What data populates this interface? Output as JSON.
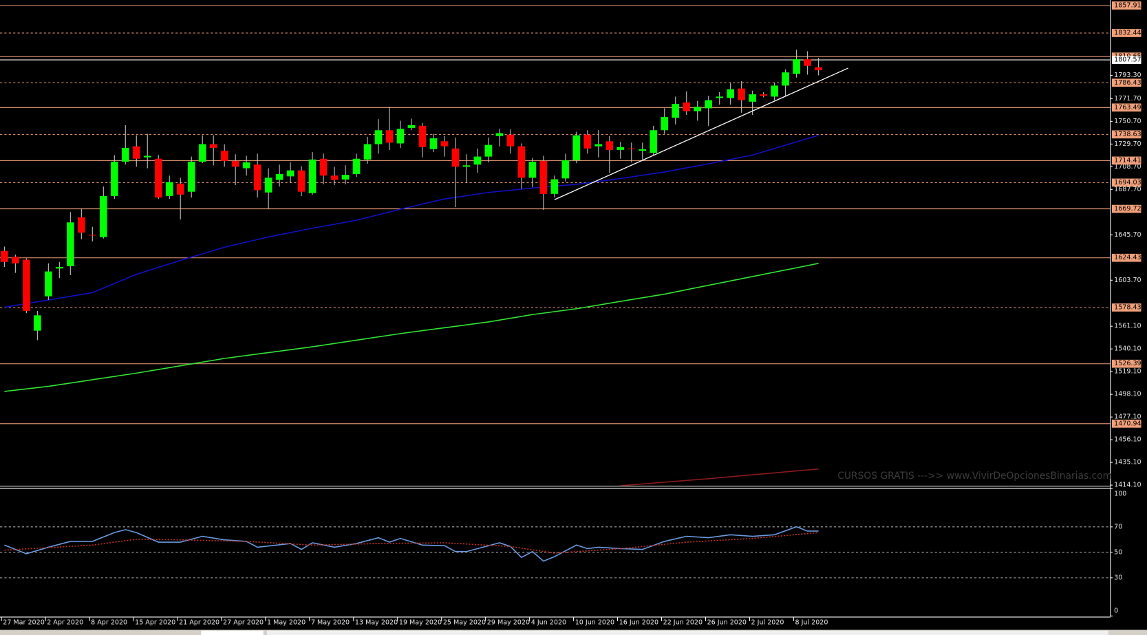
{
  "chart_data": {
    "type": "candlestick",
    "categories": [
      "27 Mar 2020",
      null,
      null,
      null,
      "2 Apr 2020",
      null,
      null,
      null,
      "8 Apr 2020",
      null,
      null,
      null,
      "15 Apr 2020",
      null,
      null,
      null,
      "21 Apr 2020",
      null,
      null,
      null,
      "27 Apr 2020",
      null,
      null,
      null,
      "1 May 2020",
      null,
      null,
      null,
      "7 May 2020",
      null,
      null,
      null,
      "13 May 2020",
      null,
      null,
      null,
      "19 May 2020",
      null,
      null,
      null,
      "25 May 2020",
      null,
      null,
      null,
      "29 May 2020",
      null,
      null,
      null,
      "4 Jun 2020",
      null,
      null,
      null,
      "10 Jun 2020",
      null,
      null,
      null,
      "16 Jun 2020",
      null,
      null,
      null,
      "22 Jun 2020",
      null,
      null,
      null,
      "26 Jun 2020",
      null,
      null,
      null,
      "2 Jul 2020",
      null,
      null,
      null,
      "8 Jul 2020",
      null,
      null
    ],
    "open": [
      1630.8,
      1625.4,
      1622.7,
      1557.0,
      1588.8,
      1614.5,
      1616.6,
      1661.9,
      1645.7,
      1643.6,
      1681.6,
      1713.4,
      1727.6,
      1717.4,
      1716.1,
      1681.6,
      1693.1,
      1685.6,
      1713.4,
      1729.6,
      1723.5,
      1714.1,
      1707.3,
      1710.7,
      1684.9,
      1696.5,
      1699.8,
      1705.3,
      1684.3,
      1716.1,
      1700.5,
      1696.9,
      1701.9,
      1715.4,
      1729.6,
      1742.5,
      1730.3,
      1744.5,
      1746.6,
      1725.0,
      1732.3,
      1725.6,
      1708.7,
      1710.7,
      1718.1,
      1737.1,
      1738.4,
      1727.6,
      1698.5,
      1714.1,
      1683.6,
      1697.9,
      1714.7,
      1738.4,
      1727.6,
      1732.3,
      1724.2,
      1725.6,
      1723.5,
      1721.5,
      1742.5,
      1754.0,
      1768.2,
      1760.1,
      1762.8,
      1772.3,
      1772.3,
      1781.1,
      1768.9,
      1775.7,
      1773.6,
      1783.8,
      1794.6,
      1808.2,
      1800.7
    ],
    "high": [
      1634.8,
      1627.4,
      1624.0,
      1575.3,
      1619.3,
      1620.6,
      1666.7,
      1670.1,
      1653.1,
      1690.4,
      1719.5,
      1747.2,
      1737.8,
      1739.1,
      1719.5,
      1700.5,
      1698.5,
      1718.1,
      1737.8,
      1737.8,
      1729.6,
      1720.2,
      1718.8,
      1720.8,
      1707.3,
      1710.7,
      1712.7,
      1709.3,
      1722.2,
      1720.8,
      1708.7,
      1710.0,
      1720.8,
      1736.4,
      1752.7,
      1764.2,
      1751.3,
      1753.3,
      1749.3,
      1739.1,
      1737.1,
      1735.7,
      1720.2,
      1725.6,
      1735.7,
      1743.8,
      1743.2,
      1730.3,
      1716.8,
      1718.8,
      1700.5,
      1720.8,
      1741.1,
      1742.5,
      1742.5,
      1737.1,
      1731.7,
      1731.0,
      1731.0,
      1746.6,
      1762.8,
      1773.6,
      1778.4,
      1769.6,
      1774.3,
      1777.7,
      1786.5,
      1787.9,
      1779.1,
      1777.7,
      1786.5,
      1798.7,
      1817.0,
      1815.6,
      1809.5
    ],
    "low": [
      1615.9,
      1610.5,
      1573.2,
      1548.2,
      1585.4,
      1605.7,
      1608.4,
      1641.6,
      1639.6,
      1642.3,
      1678.9,
      1710.7,
      1708.7,
      1707.3,
      1678.9,
      1678.9,
      1659.9,
      1680.2,
      1712.0,
      1710.0,
      1708.7,
      1691.7,
      1700.5,
      1680.2,
      1670.1,
      1690.4,
      1693.8,
      1681.6,
      1682.9,
      1692.4,
      1691.7,
      1692.4,
      1699.2,
      1711.4,
      1720.8,
      1724.2,
      1726.2,
      1742.5,
      1717.4,
      1722.2,
      1718.1,
      1671.4,
      1693.8,
      1703.2,
      1712.7,
      1727.6,
      1720.8,
      1688.3,
      1689.7,
      1668.7,
      1680.2,
      1695.1,
      1712.0,
      1720.8,
      1717.4,
      1703.2,
      1716.1,
      1712.7,
      1715.4,
      1718.8,
      1739.1,
      1747.9,
      1756.7,
      1751.3,
      1746.6,
      1766.2,
      1766.2,
      1758.7,
      1756.7,
      1772.9,
      1770.3,
      1773.6,
      1791.2,
      1793.9,
      1793.3
    ],
    "close": [
      1620.6,
      1619.3,
      1575.3,
      1571.2,
      1611.8,
      1615.9,
      1657.2,
      1647.7,
      1645.0,
      1681.6,
      1713.4,
      1726.2,
      1716.1,
      1718.8,
      1680.2,
      1694.4,
      1682.9,
      1713.4,
      1729.6,
      1726.2,
      1714.1,
      1708.7,
      1712.7,
      1687.0,
      1698.5,
      1701.9,
      1705.3,
      1685.6,
      1715.4,
      1700.5,
      1696.5,
      1701.2,
      1716.1,
      1729.6,
      1742.5,
      1731.0,
      1743.8,
      1747.2,
      1726.9,
      1735.0,
      1727.6,
      1708.7,
      1710.0,
      1718.1,
      1728.9,
      1739.8,
      1727.6,
      1698.5,
      1713.4,
      1683.6,
      1697.1,
      1714.7,
      1737.8,
      1725.6,
      1729.6,
      1724.2,
      1726.9,
      1724.9,
      1724.9,
      1742.5,
      1754.7,
      1766.9,
      1760.1,
      1764.2,
      1770.3,
      1773.6,
      1780.4,
      1770.3,
      1775.7,
      1774.3,
      1783.8,
      1796.0,
      1808.2,
      1802.1,
      1798.0
    ],
    "colors": {
      "bull": "#00ff00",
      "bear": "#ff0000",
      "wick": "#c8c8c8",
      "level": "#f0a07a",
      "bid": "#ffffff"
    },
    "ylim": [
      1412.8,
      1863.0
    ],
    "yticks": [
      {
        "value": 1414.1,
        "label": "1414.10"
      },
      {
        "value": 1435.1,
        "label": "1435.10"
      },
      {
        "value": 1456.1,
        "label": "1456.10"
      },
      {
        "value": 1477.1,
        "label": "1477.10"
      },
      {
        "value": 1498.1,
        "label": "1498.10"
      },
      {
        "value": 1519.1,
        "label": "1519.10"
      },
      {
        "value": 1540.1,
        "label": "1540.10"
      },
      {
        "value": 1561.1,
        "label": "1561.10"
      },
      {
        "value": 1603.7,
        "label": "1603.70"
      },
      {
        "value": 1645.7,
        "label": "1645.70"
      },
      {
        "value": 1687.7,
        "label": "1687.70"
      },
      {
        "value": 1708.7,
        "label": "1708.70"
      },
      {
        "value": 1729.7,
        "label": "1729.70"
      },
      {
        "value": 1750.7,
        "label": "1750.70"
      },
      {
        "value": 1771.7,
        "label": "1771.70"
      },
      {
        "value": 1793.3,
        "label": "1793.30"
      }
    ],
    "levels": [
      {
        "value": 1857.91,
        "style": "solid"
      },
      {
        "value": 1832.44,
        "style": "dashed"
      },
      {
        "value": 1810.65,
        "style": "solid"
      },
      {
        "value": 1786.43,
        "style": "dashed"
      },
      {
        "value": 1763.49,
        "style": "solid"
      },
      {
        "value": 1738.63,
        "style": "dashed"
      },
      {
        "value": 1714.41,
        "style": "solid"
      },
      {
        "value": 1694.03,
        "style": "dashed"
      },
      {
        "value": 1669.72,
        "style": "solid"
      },
      {
        "value": 1624.43,
        "style": "solid"
      },
      {
        "value": 1578.43,
        "style": "dashed"
      },
      {
        "value": 1526.39,
        "style": "solid"
      },
      {
        "value": 1470.94,
        "style": "solid"
      }
    ],
    "bid": 1807.57,
    "lines": [
      {
        "color": "#1010c8",
        "x": [
          0,
          4,
          8,
          12,
          16,
          20,
          24,
          28,
          32,
          36,
          40,
          44,
          48,
          52,
          56,
          60,
          64,
          68,
          72,
          74
        ],
        "values": [
          1578.7,
          1585.4,
          1592.2,
          1609.1,
          1622.0,
          1634.2,
          1643.7,
          1651.8,
          1659.2,
          1669.4,
          1678.9,
          1684.9,
          1689.0,
          1692.4,
          1697.8,
          1703.9,
          1711.4,
          1719.5,
          1731.7,
          1737.8
        ]
      },
      {
        "color": "#32e632",
        "x": [
          0,
          4,
          8,
          12,
          16,
          20,
          24,
          28,
          32,
          36,
          40,
          44,
          48,
          52,
          56,
          60,
          64,
          68,
          72,
          74
        ],
        "values": [
          1500.8,
          1505.5,
          1511.6,
          1517.7,
          1524.5,
          1531.3,
          1536.7,
          1542.1,
          1548.2,
          1554.3,
          1559.7,
          1565.1,
          1571.9,
          1577.3,
          1584.1,
          1590.8,
          1599.0,
          1607.1,
          1615.2,
          1619.3
        ]
      },
      {
        "color": "#8b1a1a",
        "x": [
          56,
          64,
          74
        ],
        "values": [
          1413.5,
          1420.0,
          1429.0
        ]
      }
    ],
    "trendline": {
      "color": "#ffffff",
      "x": [
        50,
        76.7
      ],
      "y": [
        1678.2,
        1800.0
      ]
    },
    "watermark": "CURSOS GRATIS --->> www.VivirDeOpcionesBinarias.com",
    "indicator": {
      "type": "line",
      "ylim": [
        0,
        100
      ],
      "yticks": [
        100,
        70,
        50,
        30,
        0
      ],
      "levels": [
        70,
        50,
        30
      ],
      "series": [
        {
          "color": "#6a9be0",
          "style": "solid",
          "x": [
            0,
            2,
            4,
            6,
            8,
            10,
            11,
            12,
            14,
            16,
            18,
            20,
            22,
            23,
            26,
            27,
            28,
            30,
            32,
            34,
            35,
            36,
            38,
            40,
            41,
            42,
            44,
            45,
            46,
            47,
            48,
            49,
            50,
            52,
            53,
            54,
            56,
            58,
            60,
            62,
            64,
            66,
            68,
            70,
            72,
            73,
            74
          ],
          "values": [
            55.7,
            48.9,
            54.0,
            58.6,
            58.6,
            65.5,
            67.8,
            65.5,
            58.0,
            58.0,
            62.6,
            59.8,
            58.6,
            54.0,
            56.9,
            52.3,
            57.5,
            54.0,
            56.9,
            61.5,
            58.0,
            60.9,
            55.7,
            55.2,
            50.6,
            50.6,
            55.2,
            57.5,
            54.6,
            46.0,
            50.6,
            43.1,
            46.6,
            55.7,
            52.9,
            54.0,
            52.9,
            52.3,
            58.6,
            62.6,
            61.5,
            63.8,
            62.6,
            63.8,
            70.1,
            66.7,
            66.7
          ]
        },
        {
          "color": "#c03020",
          "style": "dotted",
          "x": [
            0,
            8,
            12,
            16,
            22,
            28,
            34,
            40,
            46,
            50,
            56,
            62,
            68,
            74
          ],
          "values": [
            51.7,
            55.7,
            60.3,
            59.8,
            58.6,
            55.7,
            56.9,
            57.5,
            54.6,
            49.4,
            52.9,
            58.0,
            60.9,
            65.5
          ]
        }
      ]
    }
  }
}
